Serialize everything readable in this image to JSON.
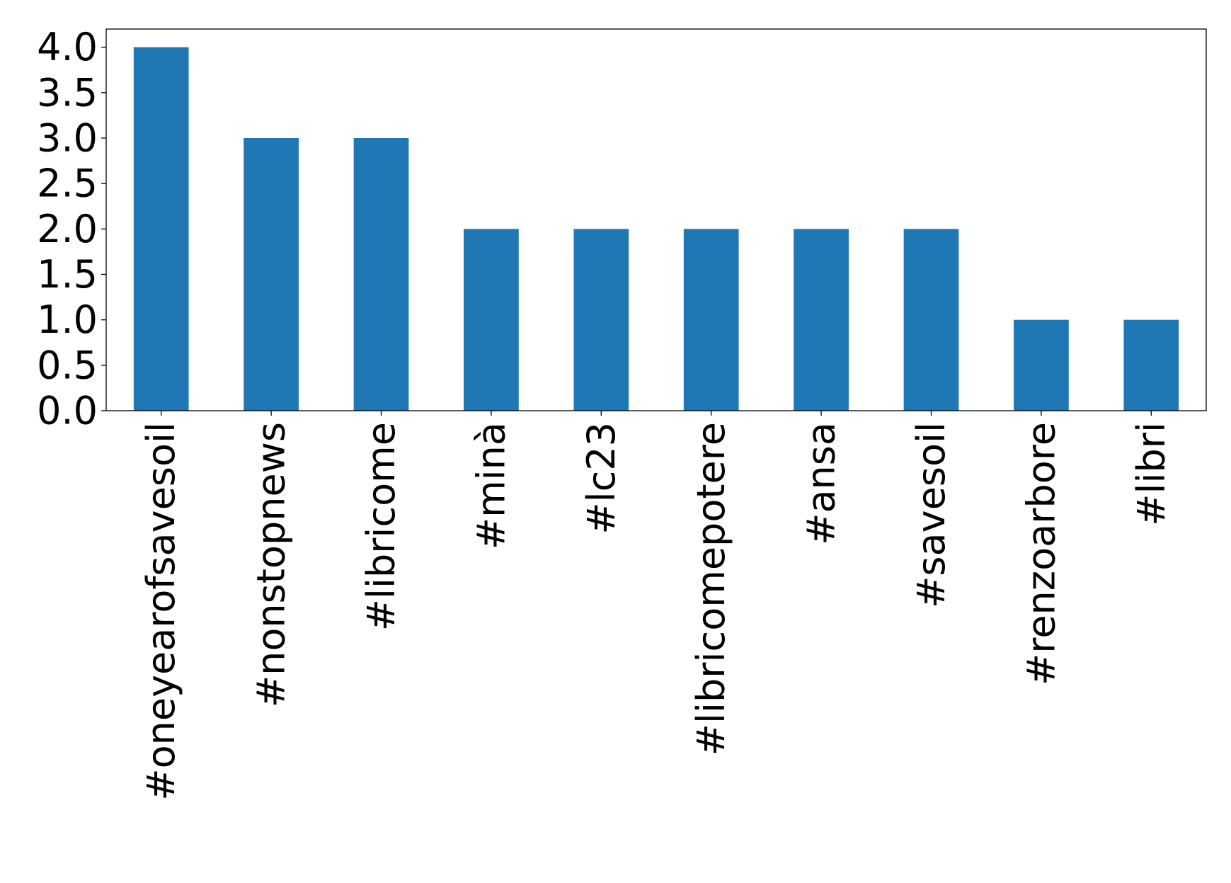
{
  "chart_data": {
    "type": "bar",
    "categories": [
      "#oneyearofsavesoil",
      "#nonstopnews",
      "#libricome",
      "#minà",
      "#lc23",
      "#libricomepotere",
      "#ansa",
      "#savesoil",
      "#renzoarbore",
      "#libri"
    ],
    "values": [
      4,
      3,
      3,
      2,
      2,
      2,
      2,
      2,
      1,
      1
    ],
    "title": "",
    "xlabel": "",
    "ylabel": "",
    "ylim": [
      0,
      4.2
    ],
    "yticks": [
      "0.0",
      "0.5",
      "1.0",
      "1.5",
      "2.0",
      "2.5",
      "3.0",
      "3.5",
      "4.0"
    ],
    "grid": false,
    "bar_color": "#1f77b4"
  }
}
